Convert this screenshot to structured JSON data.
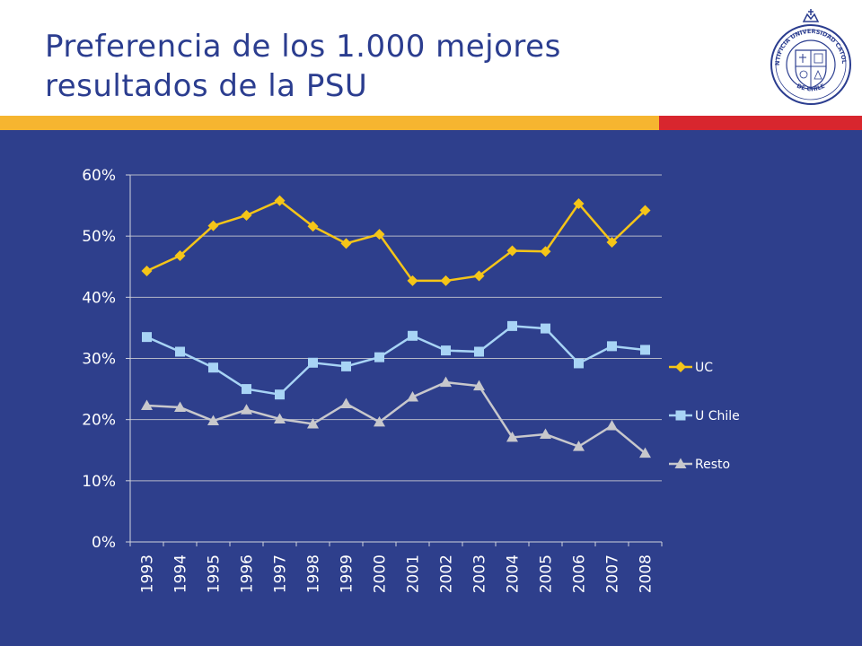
{
  "slide": {
    "title_line1": "Preferencia de los 1.000 mejores",
    "title_line2": "resultados de la PSU",
    "colors": {
      "title": "#2b3d8f",
      "band_yellow": "#f6b530",
      "band_red": "#d8262e",
      "panel": "#2e3f8c"
    },
    "logo": {
      "icon": "university-seal-icon",
      "text_top": "PONTIFICIA UNIVERSIDAD CATOLICA",
      "text_bottom": "DE CHILE"
    }
  },
  "chart_data": {
    "type": "line",
    "categories": [
      "1993",
      "1994",
      "1995",
      "1996",
      "1997",
      "1998",
      "1999",
      "2000",
      "2001",
      "2002",
      "2003",
      "2004",
      "2005",
      "2006",
      "2007",
      "2008"
    ],
    "ylim": [
      0,
      60
    ],
    "yticks": [
      "0%",
      "10%",
      "20%",
      "30%",
      "40%",
      "50%",
      "60%"
    ],
    "grid": true,
    "legend_position": "right",
    "series": [
      {
        "name": "UC",
        "color": "#f5c518",
        "marker": "diamond",
        "values": [
          44.3,
          46.8,
          51.7,
          53.4,
          55.8,
          51.6,
          48.8,
          50.3,
          42.7,
          42.7,
          43.5,
          47.6,
          47.5,
          55.3,
          49.0,
          54.2
        ]
      },
      {
        "name": "U Chile",
        "color": "#a8d4f5",
        "marker": "square",
        "values": [
          33.5,
          31.1,
          28.5,
          25.0,
          24.1,
          29.3,
          28.7,
          30.2,
          33.7,
          31.3,
          31.1,
          35.3,
          34.9,
          29.2,
          32.0,
          31.4
        ]
      },
      {
        "name": "Resto",
        "color": "#c8c8cc",
        "marker": "triangle",
        "values": [
          22.3,
          22.0,
          19.8,
          21.6,
          20.1,
          19.3,
          22.6,
          19.6,
          23.7,
          26.1,
          25.5,
          17.1,
          17.6,
          15.6,
          19.0,
          14.5
        ]
      }
    ]
  }
}
